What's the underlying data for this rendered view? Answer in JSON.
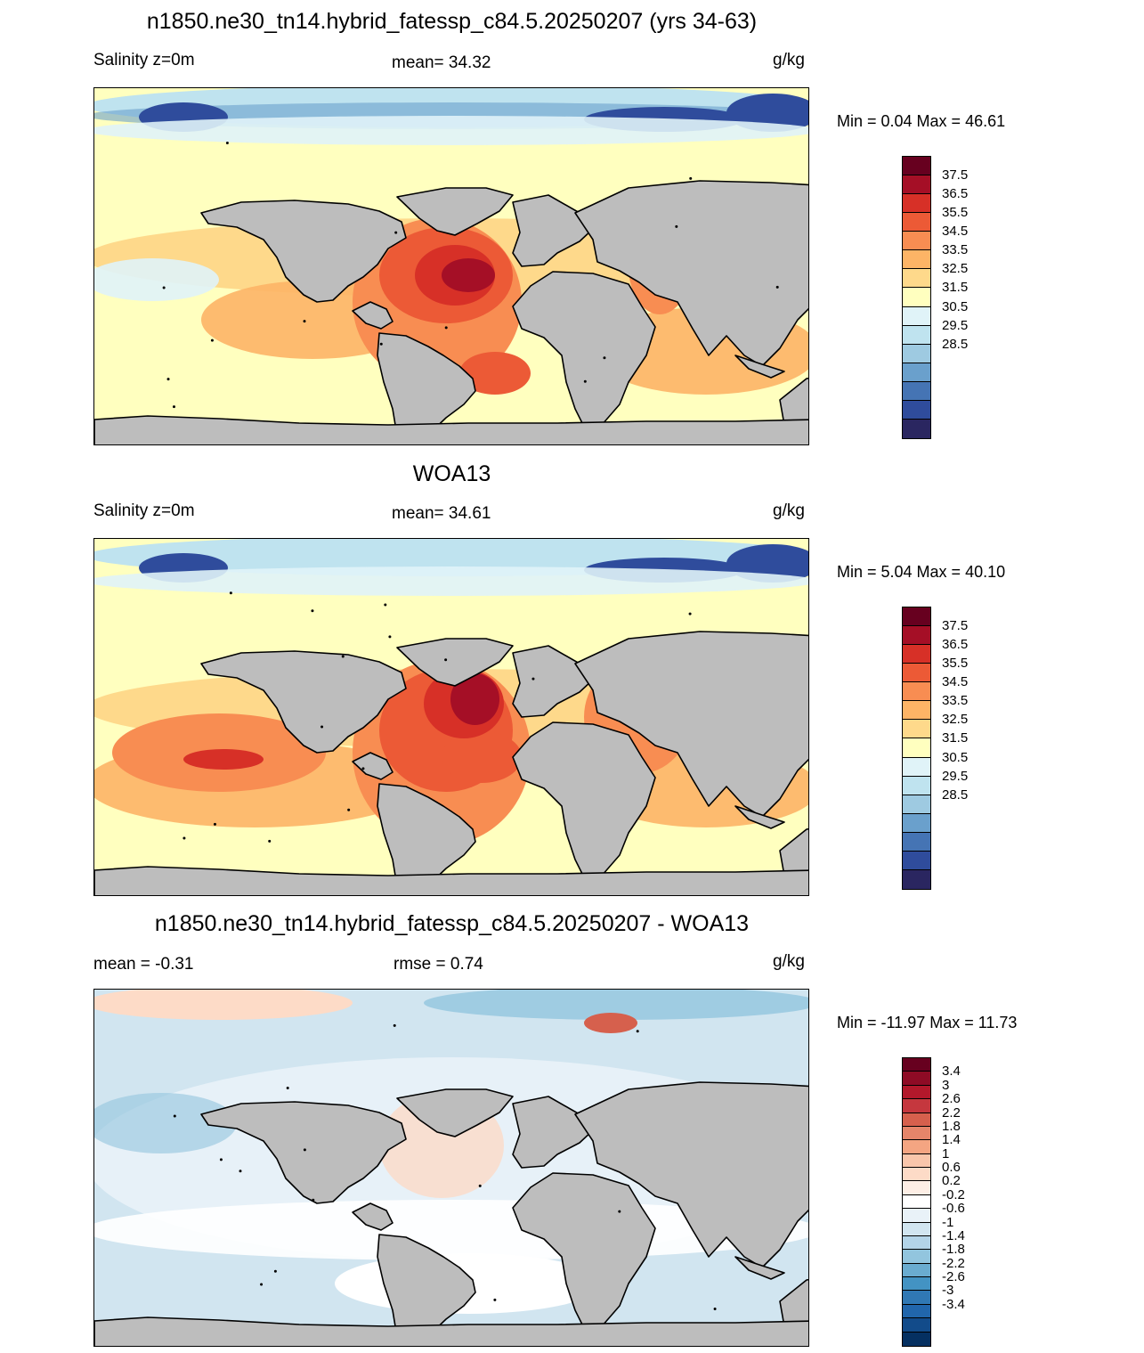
{
  "panels": [
    {
      "title": "n1850.ne30_tn14.hybrid_fatessp_c84.5.20250207 (yrs 34-63)",
      "left_label": "Salinity z=0m",
      "center_label": "mean=  34.32",
      "units": "g/kg",
      "minmax": "Min =   0.04 Max =  46.61",
      "colorbar_labels": [
        "37.5",
        "36.5",
        "35.5",
        "34.5",
        "33.5",
        "32.5",
        "31.5",
        "30.5",
        "29.5",
        "28.5"
      ],
      "colorbar_colors": [
        "#67001f",
        "#a50f26",
        "#d73027",
        "#ec5a36",
        "#f88d52",
        "#fdb466",
        "#fed98b",
        "#ffffbf",
        "#e0f3f8",
        "#bfe3ef",
        "#9ecae1",
        "#6aa0cc",
        "#4574b4",
        "#2f4c9c",
        "#2a2660"
      ]
    },
    {
      "title": "WOA13",
      "left_label": "Salinity z=0m",
      "center_label": "mean=  34.61",
      "units": "g/kg",
      "minmax": "Min =   5.04 Max =  40.10",
      "colorbar_labels": [
        "37.5",
        "36.5",
        "35.5",
        "34.5",
        "33.5",
        "32.5",
        "31.5",
        "30.5",
        "29.5",
        "28.5"
      ],
      "colorbar_colors": [
        "#67001f",
        "#a50f26",
        "#d73027",
        "#ec5a36",
        "#f88d52",
        "#fdb466",
        "#fed98b",
        "#ffffbf",
        "#e0f3f8",
        "#bfe3ef",
        "#9ecae1",
        "#6aa0cc",
        "#4574b4",
        "#2f4c9c",
        "#2a2660"
      ]
    },
    {
      "title": "n1850.ne30_tn14.hybrid_fatessp_c84.5.20250207 - WOA13",
      "left_label": "mean =  -0.31",
      "center_label": "rmse =   0.74",
      "units": "g/kg",
      "minmax": "Min = -11.97 Max =  11.73",
      "colorbar_labels": [
        "3.4",
        "3",
        "2.6",
        "2.2",
        "1.8",
        "1.4",
        "1",
        "0.6",
        "0.2",
        "-0.2",
        "-0.6",
        "-1",
        "-1.4",
        "-1.8",
        "-2.2",
        "-2.6",
        "-3",
        "-3.4"
      ],
      "colorbar_colors": [
        "#67001f",
        "#8e0b25",
        "#b2182b",
        "#c5373e",
        "#d6604d",
        "#e5856a",
        "#f4a582",
        "#f9c6ab",
        "#fddbc7",
        "#fdeee5",
        "#ffffff",
        "#e9f2f8",
        "#d1e5f0",
        "#b3d4e8",
        "#92c5de",
        "#6aacd0",
        "#4393c3",
        "#3078b4",
        "#2166ac",
        "#124b8a",
        "#053061"
      ]
    }
  ]
}
